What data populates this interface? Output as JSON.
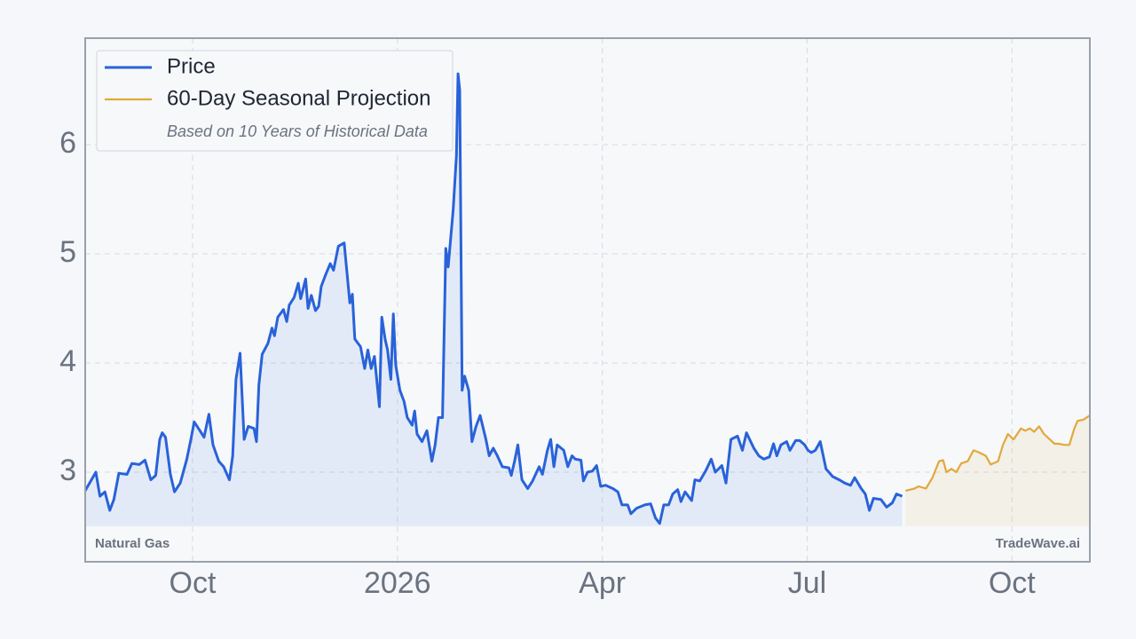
{
  "chart_data": {
    "type": "line",
    "xlim": [
      2025.619,
      2026.845
    ],
    "ylim": [
      2.179,
      6.976
    ],
    "xticks": [
      {
        "value": 2025.75,
        "label": "Oct"
      },
      2026,
      {
        "value": 2026.25,
        "label": "Apr"
      },
      {
        "value": 2026.5,
        "label": "Jul"
      },
      {
        "value": 2026.75,
        "label": "Oct"
      }
    ],
    "yticks": [
      3,
      4,
      5,
      6
    ],
    "grid": true,
    "legend": "upper left",
    "legend_note": "Based on 10 Years of Historical Data",
    "annotations": [
      "Natural Gas",
      "TradeWave.ai"
    ],
    "series": [
      {
        "name": "Price",
        "color": "#2962d9",
        "x": [
          2025.619,
          2025.632,
          2025.637,
          2025.643,
          2025.649,
          2025.654,
          2025.66,
          2025.67,
          2025.676,
          2025.685,
          2025.692,
          2025.699,
          2025.705,
          2025.71,
          2025.713,
          2025.717,
          2025.723,
          2025.728,
          2025.735,
          2025.743,
          2025.748,
          2025.752,
          2025.759,
          2025.764,
          2025.77,
          2025.775,
          2025.782,
          2025.788,
          2025.795,
          2025.799,
          2025.803,
          2025.808,
          2025.813,
          2025.818,
          2025.825,
          2025.828,
          2025.831,
          2025.835,
          2025.842,
          2025.847,
          2025.85,
          2025.854,
          2025.861,
          2025.865,
          2025.868,
          2025.874,
          2025.879,
          2025.882,
          2025.888,
          2025.891,
          2025.895,
          2025.9,
          2025.904,
          2025.907,
          2025.912,
          2025.918,
          2025.922,
          2025.928,
          2025.935,
          2025.942,
          2025.945,
          2025.948,
          2025.955,
          2025.96,
          2025.964,
          2025.968,
          2025.972,
          2025.978,
          2025.981,
          2025.985,
          2025.988,
          2025.992,
          2025.995,
          2025.998,
          2026.003,
          2026.008,
          2026.012,
          2026.018,
          2026.021,
          2026.024,
          2026.03,
          2026.036,
          2026.042,
          2026.046,
          2026.05,
          2026.055,
          2026.059,
          2026.062,
          2026.068,
          2026.072,
          2026.074,
          2026.076,
          2026.079,
          2026.082,
          2026.087,
          2026.091,
          2026.096,
          2026.101,
          2026.108,
          2026.112,
          2026.117,
          2026.122,
          2026.128,
          2026.136,
          2026.139,
          2026.143,
          2026.147,
          2026.152,
          2026.159,
          2026.165,
          2026.173,
          2026.177,
          2026.183,
          2026.187,
          2026.191,
          2026.195,
          2026.203,
          2026.208,
          2026.213,
          2026.217,
          2026.224,
          2026.227,
          2026.232,
          2026.238,
          2026.243,
          2026.248,
          2026.254,
          2026.263,
          2026.269,
          2026.274,
          2026.281,
          2026.285,
          2026.292,
          2026.302,
          2026.309,
          2026.315,
          2026.32,
          2026.325,
          2026.331,
          2026.336,
          2026.342,
          2026.346,
          2026.351,
          2026.359,
          2026.363,
          2026.369,
          2026.376,
          2026.383,
          2026.388,
          2026.396,
          2026.401,
          2026.407,
          2026.415,
          2026.421,
          2026.426,
          2026.435,
          2026.441,
          2026.447,
          2026.454,
          2026.459,
          2026.463,
          2026.468,
          2026.475,
          2026.479,
          2026.486,
          2026.491,
          2026.497,
          2026.501,
          2026.505,
          2026.51,
          2026.516,
          2026.523,
          2026.531,
          2026.539,
          2026.546,
          2026.553,
          2026.558,
          2026.566,
          2026.571,
          2026.576,
          2026.581,
          2026.59,
          2026.597,
          2026.604,
          2026.609,
          2026.616
        ],
        "values": [
          2.83,
          3.0,
          2.78,
          2.82,
          2.65,
          2.75,
          2.99,
          2.98,
          3.08,
          3.07,
          3.11,
          2.93,
          2.97,
          3.3,
          3.36,
          3.32,
          2.98,
          2.82,
          2.9,
          3.12,
          3.3,
          3.46,
          3.38,
          3.32,
          3.53,
          3.25,
          3.1,
          3.05,
          2.93,
          3.15,
          3.85,
          4.09,
          3.3,
          3.42,
          3.4,
          3.28,
          3.8,
          4.08,
          4.18,
          4.32,
          4.25,
          4.42,
          4.49,
          4.38,
          4.53,
          4.6,
          4.73,
          4.59,
          4.77,
          4.5,
          4.62,
          4.48,
          4.52,
          4.7,
          4.8,
          4.91,
          4.85,
          5.07,
          5.1,
          4.55,
          4.63,
          4.22,
          4.15,
          3.95,
          4.12,
          3.95,
          4.06,
          3.6,
          4.42,
          4.22,
          4.12,
          3.85,
          4.45,
          3.98,
          3.75,
          3.65,
          3.5,
          3.43,
          3.56,
          3.35,
          3.28,
          3.38,
          3.1,
          3.25,
          3.5,
          3.5,
          5.05,
          4.88,
          5.4,
          5.9,
          6.65,
          6.5,
          3.75,
          3.88,
          3.75,
          3.28,
          3.42,
          3.52,
          3.3,
          3.15,
          3.22,
          3.15,
          3.05,
          3.04,
          2.97,
          3.1,
          3.25,
          2.93,
          2.85,
          2.92,
          3.05,
          2.98,
          3.2,
          3.3,
          3.05,
          3.25,
          3.2,
          3.05,
          3.15,
          3.12,
          3.11,
          2.92,
          3.0,
          3.01,
          3.06,
          2.87,
          2.88,
          2.85,
          2.82,
          2.7,
          2.7,
          2.62,
          2.67,
          2.7,
          2.71,
          2.58,
          2.53,
          2.7,
          2.7,
          2.8,
          2.84,
          2.73,
          2.82,
          2.74,
          2.93,
          2.92,
          3.01,
          3.12,
          3.0,
          3.06,
          2.9,
          3.3,
          3.33,
          3.2,
          3.36,
          3.22,
          3.15,
          3.12,
          3.14,
          3.26,
          3.15,
          3.25,
          3.28,
          3.2,
          3.29,
          3.29,
          3.25,
          3.2,
          3.18,
          3.2,
          3.28,
          3.03,
          2.96,
          2.93,
          2.9,
          2.88,
          2.95,
          2.85,
          2.8,
          2.65,
          2.76,
          2.75,
          2.68,
          2.72,
          2.8,
          2.78
        ]
      },
      {
        "name": "60-Day Seasonal Projection",
        "color": "#e3a83b",
        "x": [
          2026.62,
          2026.631,
          2026.636,
          2026.645,
          2026.653,
          2026.661,
          2026.666,
          2026.67,
          2026.676,
          2026.682,
          2026.688,
          2026.696,
          2026.703,
          2026.71,
          2026.718,
          2026.724,
          2026.733,
          2026.739,
          2026.745,
          2026.752,
          2026.761,
          2026.766,
          2026.772,
          2026.777,
          2026.783,
          2026.789,
          2026.796,
          2026.802,
          2026.807,
          2026.814,
          2026.82,
          2026.826,
          2026.83,
          2026.837,
          2026.845
        ],
        "values": [
          2.83,
          2.85,
          2.87,
          2.85,
          2.95,
          3.1,
          3.11,
          3.0,
          3.03,
          3.0,
          3.08,
          3.1,
          3.2,
          3.18,
          3.15,
          3.07,
          3.1,
          3.25,
          3.35,
          3.3,
          3.4,
          3.38,
          3.4,
          3.37,
          3.42,
          3.35,
          3.3,
          3.26,
          3.26,
          3.25,
          3.25,
          3.4,
          3.47,
          3.48,
          3.52
        ]
      }
    ]
  }
}
